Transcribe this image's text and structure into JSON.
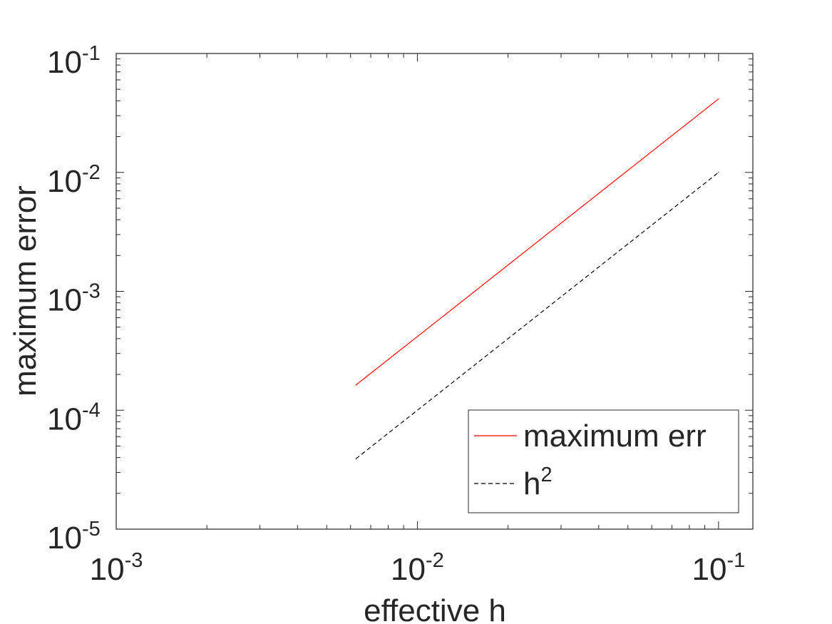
{
  "chart_data": {
    "type": "line",
    "xlabel": "effective h",
    "ylabel": "maximum error",
    "xscale": "log",
    "yscale": "log",
    "xlim": [
      0.001,
      0.13
    ],
    "ylim": [
      1e-05,
      0.1
    ],
    "x_ticks": [
      {
        "base": "10",
        "exp": "-3",
        "value": 0.001
      },
      {
        "base": "10",
        "exp": "-2",
        "value": 0.01
      },
      {
        "base": "10",
        "exp": "-1",
        "value": 0.1
      }
    ],
    "y_ticks": [
      {
        "base": "10",
        "exp": "-5",
        "value": 1e-05
      },
      {
        "base": "10",
        "exp": "-4",
        "value": 0.0001
      },
      {
        "base": "10",
        "exp": "-3",
        "value": 0.001
      },
      {
        "base": "10",
        "exp": "-2",
        "value": 0.01
      },
      {
        "base": "10",
        "exp": "-1",
        "value": 0.1
      }
    ],
    "series": [
      {
        "name": "maximum err",
        "color": "#ff0000",
        "style": "solid",
        "x": [
          0.00625,
          0.0125,
          0.025,
          0.05,
          0.1
        ],
        "y": [
          0.000163,
          0.00065,
          0.0026,
          0.0104,
          0.0415
        ]
      },
      {
        "name_base": "h",
        "name_exp": "2",
        "color": "#000000",
        "style": "dashed",
        "x": [
          0.00625,
          0.0125,
          0.025,
          0.05,
          0.1
        ],
        "y": [
          3.90625e-05,
          0.00015625,
          0.000625,
          0.0025,
          0.01
        ]
      }
    ],
    "grid": false,
    "legend_position": "bottom-right"
  }
}
